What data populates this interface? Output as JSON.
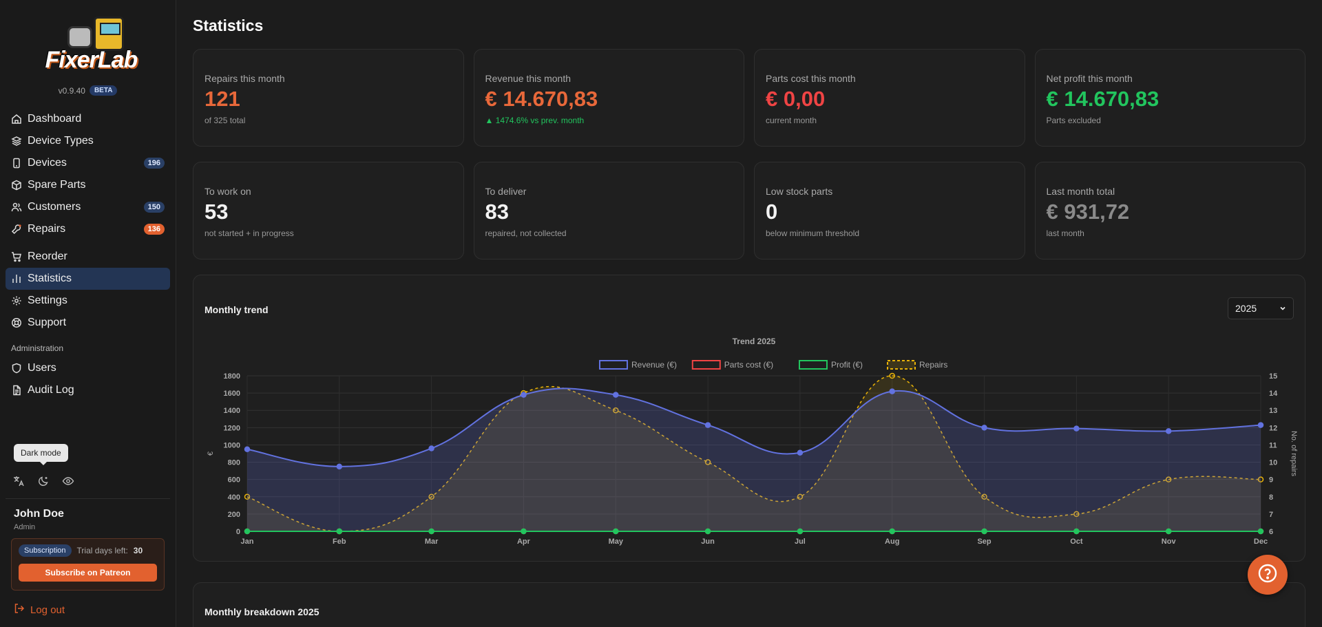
{
  "app": {
    "logo_text": "FixerLab",
    "version": "v0.9.40",
    "beta_label": "BETA"
  },
  "sidebar": {
    "items": [
      {
        "label": "Dashboard",
        "icon": "home-icon"
      },
      {
        "label": "Device Types",
        "icon": "layers-icon"
      },
      {
        "label": "Devices",
        "icon": "smartphone-icon",
        "count": "196"
      },
      {
        "label": "Spare Parts",
        "icon": "box-icon"
      },
      {
        "label": "Customers",
        "icon": "users-icon",
        "count": "150"
      },
      {
        "label": "Repairs",
        "icon": "wrench-icon",
        "count": "136"
      },
      {
        "label": "Reorder",
        "icon": "cart-icon"
      },
      {
        "label": "Statistics",
        "icon": "bar-chart-icon"
      },
      {
        "label": "Settings",
        "icon": "gear-icon"
      },
      {
        "label": "Support",
        "icon": "lifebuoy-icon"
      }
    ],
    "admin_label": "Administration",
    "admin_items": [
      {
        "label": "Users",
        "icon": "shield-icon"
      },
      {
        "label": "Audit Log",
        "icon": "file-text-icon"
      }
    ],
    "tooltip": "Dark mode",
    "user": {
      "name": "John Doe",
      "role": "Admin"
    },
    "subscription": {
      "badge": "Subscription",
      "trial_label": "Trial days left:",
      "trial_days": "30",
      "button": "Subscribe on Patreon"
    },
    "logout": "Log out"
  },
  "page": {
    "title": "Statistics"
  },
  "cards": [
    {
      "label": "Repairs this month",
      "value": "121",
      "sub": "of 325 total",
      "color": "#e8683a"
    },
    {
      "label": "Revenue this month",
      "value": "€ 14.670,83",
      "sub": "▲ 1474.6% vs prev. month",
      "color": "#e8683a"
    },
    {
      "label": "Parts cost this month",
      "value": "€ 0,00",
      "sub": "current month",
      "color": "#ef4444"
    },
    {
      "label": "Net profit this month",
      "value": "€ 14.670,83",
      "sub": "Parts excluded",
      "color": "#22c55e"
    },
    {
      "label": "To work on",
      "value": "53",
      "sub": "not started + in progress",
      "color": "#f2f2f2"
    },
    {
      "label": "To deliver",
      "value": "83",
      "sub": "repaired, not collected",
      "color": "#f2f2f2"
    },
    {
      "label": "Low stock parts",
      "value": "0",
      "sub": "below minimum threshold",
      "color": "#f2f2f2"
    },
    {
      "label": "Last month total",
      "value": "€ 931,72",
      "sub": "last month",
      "color": "#8a8a8a"
    }
  ],
  "trend": {
    "title": "Monthly trend",
    "year": "2025"
  },
  "breakdown": {
    "title": "Monthly breakdown 2025"
  },
  "chart_data": {
    "type": "line",
    "title": "Trend 2025",
    "categories": [
      "Jan",
      "Feb",
      "Mar",
      "Apr",
      "May",
      "Jun",
      "Jul",
      "Aug",
      "Sep",
      "Oct",
      "Nov",
      "Dec"
    ],
    "series": [
      {
        "name": "Revenue (€)",
        "axis": "left",
        "color": "#6272e0",
        "values": [
          950,
          750,
          960,
          1580,
          1580,
          1230,
          910,
          1620,
          1200,
          1190,
          1160,
          1230
        ]
      },
      {
        "name": "Parts cost (€)",
        "axis": "left",
        "color": "#ef4444",
        "values": [
          0,
          0,
          0,
          0,
          0,
          0,
          0,
          0,
          0,
          0,
          0,
          0
        ]
      },
      {
        "name": "Profit (€)",
        "axis": "left",
        "color": "#22c55e",
        "values": [
          0,
          0,
          0,
          0,
          0,
          0,
          0,
          0,
          0,
          0,
          0,
          0
        ]
      },
      {
        "name": "Repairs",
        "axis": "right",
        "color": "#eab308",
        "dashed": true,
        "values": [
          8,
          6,
          8,
          14,
          13,
          10,
          8,
          15,
          8,
          7,
          9,
          9
        ]
      }
    ],
    "ylabel": "€",
    "y2label": "No. of repairs",
    "ylim": [
      0,
      1800
    ],
    "yticks": [
      0,
      200,
      400,
      600,
      800,
      1000,
      1200,
      1400,
      1600,
      1800
    ],
    "y2lim": [
      6,
      15
    ],
    "y2ticks": [
      6,
      7,
      8,
      9,
      10,
      11,
      12,
      13,
      14,
      15
    ],
    "grid": true,
    "legend": "top"
  }
}
